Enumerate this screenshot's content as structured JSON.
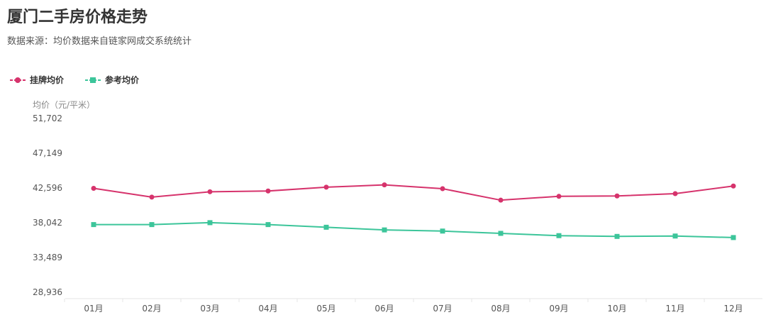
{
  "chart_data": {
    "type": "line",
    "title": "厦门二手房价格走势",
    "subtitle": "数据来源：均价数据来自链家网成交系统统计",
    "ylabel": "均价（元/平米）",
    "categories": [
      "01月",
      "02月",
      "03月",
      "04月",
      "05月",
      "06月",
      "07月",
      "08月",
      "09月",
      "10月",
      "11月",
      "12月"
    ],
    "y_ticks": [
      "51,702",
      "47,149",
      "42,596",
      "38,042",
      "33,489",
      "28,936"
    ],
    "ylim": [
      28936,
      51702
    ],
    "legend_position": "top-left",
    "grid": false,
    "series": [
      {
        "name": "挂牌均价",
        "color": "#d6336c",
        "marker": "circle",
        "values": [
          42550,
          41400,
          42100,
          42200,
          42700,
          43000,
          42500,
          41000,
          41500,
          41550,
          41850,
          42850
        ]
      },
      {
        "name": "参考均价",
        "color": "#3cc59a",
        "marker": "square",
        "values": [
          37800,
          37800,
          38050,
          37800,
          37450,
          37100,
          36950,
          36650,
          36350,
          36250,
          36300,
          36100
        ]
      }
    ]
  }
}
